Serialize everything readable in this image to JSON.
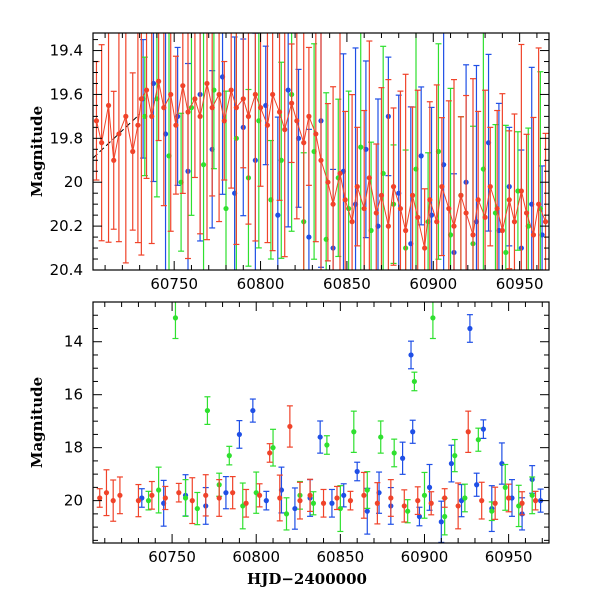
{
  "chart_data": [
    {
      "type": "scatter",
      "panel": "top",
      "title": "",
      "xlabel": "",
      "ylabel": "Magnitude",
      "xlim": [
        60703,
        60967
      ],
      "ylim": [
        20.4,
        19.32
      ],
      "y_inverted": true,
      "xticks": [
        60750,
        60800,
        60850,
        60900,
        60950
      ],
      "xtick_labels": [
        "60750",
        "60800",
        "60850",
        "60900",
        "60950"
      ],
      "yticks": [
        19.4,
        19.6,
        19.8,
        20,
        20.2,
        20.4
      ],
      "ytick_labels": [
        "19.4",
        "19.6",
        "19.8",
        "20",
        "20.2",
        "20.4"
      ],
      "dashed_line": {
        "x": [
          60703,
          60730
        ],
        "y": [
          19.89,
          19.69
        ]
      },
      "series": [
        {
          "name": "blue",
          "color": "#1f4fe6",
          "points": [
            [
              60732,
              19.62
            ],
            [
              60738,
              19.55
            ],
            [
              60745,
              19.78
            ],
            [
              60752,
              19.7
            ],
            [
              60758,
              19.95
            ],
            [
              60765,
              19.6
            ],
            [
              60772,
              19.85
            ],
            [
              60778,
              19.52
            ],
            [
              60785,
              20.05
            ],
            [
              60790,
              19.75
            ],
            [
              60797,
              19.9
            ],
            [
              60803,
              19.65
            ],
            [
              60810,
              20.15
            ],
            [
              60816,
              19.58
            ],
            [
              60822,
              19.8
            ],
            [
              60828,
              20.25
            ],
            [
              60835,
              19.72
            ],
            [
              60842,
              20.3
            ],
            [
              60848,
              19.95
            ],
            [
              60855,
              20.1
            ],
            [
              60861,
              19.85
            ],
            [
              60868,
              20.2
            ],
            [
              60874,
              19.7
            ],
            [
              60880,
              20.05
            ],
            [
              60887,
              20.28
            ],
            [
              60893,
              19.88
            ],
            [
              60899,
              20.15
            ],
            [
              60906,
              19.92
            ],
            [
              60912,
              20.32
            ],
            [
              60919,
              20.0
            ],
            [
              60925,
              20.18
            ],
            [
              60932,
              19.82
            ],
            [
              60938,
              20.22
            ],
            [
              60944,
              20.02
            ],
            [
              60951,
              20.3
            ],
            [
              60957,
              20.1
            ],
            [
              60963,
              20.24
            ]
          ]
        },
        {
          "name": "green",
          "color": "#2fe02f",
          "points": [
            [
              60733,
              19.7
            ],
            [
              60740,
              19.62
            ],
            [
              60747,
              19.88
            ],
            [
              60754,
              20.0
            ],
            [
              60760,
              19.66
            ],
            [
              60767,
              19.92
            ],
            [
              60773,
              19.58
            ],
            [
              60780,
              20.12
            ],
            [
              60786,
              19.8
            ],
            [
              60793,
              19.98
            ],
            [
              60799,
              19.72
            ],
            [
              60806,
              20.08
            ],
            [
              60812,
              19.9
            ],
            [
              60818,
              19.6
            ],
            [
              60825,
              20.18
            ],
            [
              60831,
              19.86
            ],
            [
              60838,
              20.26
            ],
            [
              60845,
              19.98
            ],
            [
              60851,
              20.12
            ],
            [
              60858,
              19.84
            ],
            [
              60864,
              20.22
            ],
            [
              60871,
              19.96
            ],
            [
              60877,
              20.1
            ],
            [
              60884,
              20.3
            ],
            [
              60890,
              19.94
            ],
            [
              60897,
              20.18
            ],
            [
              60903,
              19.86
            ],
            [
              60910,
              20.24
            ],
            [
              60916,
              20.06
            ],
            [
              60923,
              20.28
            ],
            [
              60929,
              19.94
            ],
            [
              60936,
              20.14
            ],
            [
              60942,
              20.32
            ],
            [
              60949,
              20.04
            ],
            [
              60955,
              20.2
            ],
            [
              60962,
              20.12
            ]
          ]
        },
        {
          "name": "red",
          "color": "#f0432a",
          "points": [
            [
              60705,
              19.72
            ],
            [
              60708,
              19.82
            ],
            [
              60712,
              19.65
            ],
            [
              60715,
              19.9
            ],
            [
              60718,
              19.78
            ],
            [
              60722,
              19.7
            ],
            [
              60726,
              19.86
            ],
            [
              60729,
              19.74
            ],
            [
              60731,
              19.62
            ],
            [
              60734,
              19.58
            ],
            [
              60737,
              19.7
            ],
            [
              60741,
              19.54
            ],
            [
              60744,
              19.66
            ],
            [
              60748,
              19.6
            ],
            [
              60751,
              19.74
            ],
            [
              60755,
              19.56
            ],
            [
              60758,
              19.68
            ],
            [
              60762,
              19.62
            ],
            [
              60765,
              19.7
            ],
            [
              60769,
              19.55
            ],
            [
              60772,
              19.66
            ],
            [
              60776,
              19.6
            ],
            [
              60779,
              19.72
            ],
            [
              60783,
              19.58
            ],
            [
              60786,
              19.66
            ],
            [
              60790,
              19.62
            ],
            [
              60793,
              19.7
            ],
            [
              60797,
              19.6
            ],
            [
              60800,
              19.66
            ],
            [
              60804,
              19.74
            ],
            [
              60807,
              19.6
            ],
            [
              60811,
              19.68
            ],
            [
              60814,
              19.76
            ],
            [
              60818,
              19.64
            ],
            [
              60821,
              19.72
            ],
            [
              60825,
              19.82
            ],
            [
              60828,
              19.7
            ],
            [
              60832,
              19.78
            ],
            [
              60835,
              19.9
            ],
            [
              60839,
              20.0
            ],
            [
              60842,
              20.1
            ],
            [
              60846,
              19.96
            ],
            [
              60849,
              20.08
            ],
            [
              60853,
              20.18
            ],
            [
              60856,
              20.02
            ],
            [
              60860,
              20.12
            ],
            [
              60863,
              19.98
            ],
            [
              60867,
              20.14
            ],
            [
              60870,
              20.06
            ],
            [
              60874,
              20.2
            ],
            [
              60877,
              20.02
            ],
            [
              60881,
              20.12
            ],
            [
              60884,
              20.22
            ],
            [
              60888,
              20.06
            ],
            [
              60891,
              20.16
            ],
            [
              60895,
              20.3
            ],
            [
              60898,
              20.08
            ],
            [
              60902,
              20.18
            ],
            [
              60905,
              20.02
            ],
            [
              60909,
              20.12
            ],
            [
              60912,
              20.2
            ],
            [
              60916,
              20.06
            ],
            [
              60919,
              20.14
            ],
            [
              60923,
              20.24
            ],
            [
              60926,
              20.08
            ],
            [
              60930,
              20.16
            ],
            [
              60933,
              20.02
            ],
            [
              60937,
              20.12
            ],
            [
              60940,
              20.22
            ],
            [
              60944,
              20.08
            ],
            [
              60947,
              20.18
            ],
            [
              60951,
              20.04
            ],
            [
              60954,
              20.14
            ],
            [
              60958,
              20.24
            ],
            [
              60961,
              20.1
            ],
            [
              60965,
              20.18
            ]
          ]
        }
      ]
    },
    {
      "type": "scatter",
      "panel": "bottom",
      "title": "",
      "xlabel": "HJD−2400000",
      "ylabel": "Magnitude",
      "xlim": [
        60703,
        60974
      ],
      "ylim": [
        21.6,
        12.5
      ],
      "y_inverted": true,
      "xticks": [
        60750,
        60800,
        60850,
        60900,
        60950
      ],
      "xtick_labels": [
        "60750",
        "60800",
        "60850",
        "60900",
        "60950"
      ],
      "yticks": [
        14,
        16,
        18,
        20
      ],
      "ytick_labels": [
        "14",
        "16",
        "18",
        "20"
      ],
      "series": [
        {
          "name": "blue",
          "color": "#1f4fe6",
          "points": [
            [
              60732,
              19.9
            ],
            [
              60745,
              20.1
            ],
            [
              60758,
              19.8
            ],
            [
              60770,
              20.2
            ],
            [
              60782,
              19.7
            ],
            [
              60790,
              17.5
            ],
            [
              60798,
              16.6
            ],
            [
              60806,
              20.0
            ],
            [
              60815,
              19.6
            ],
            [
              60823,
              20.3
            ],
            [
              60832,
              19.9
            ],
            [
              60838,
              17.6
            ],
            [
              60845,
              20.1
            ],
            [
              60852,
              19.8
            ],
            [
              60860,
              18.9
            ],
            [
              60866,
              20.4
            ],
            [
              60873,
              19.7
            ],
            [
              60880,
              20.2
            ],
            [
              60887,
              18.4
            ],
            [
              60892,
              14.5
            ],
            [
              60893,
              17.4
            ],
            [
              60897,
              20.6
            ],
            [
              60903,
              19.5
            ],
            [
              60910,
              20.8
            ],
            [
              60916,
              18.6
            ],
            [
              60922,
              20.0
            ],
            [
              60927,
              13.5
            ],
            [
              60931,
              19.4
            ],
            [
              60935,
              17.3
            ],
            [
              60940,
              20.3
            ],
            [
              60946,
              18.6
            ],
            [
              60952,
              19.9
            ],
            [
              60958,
              20.5
            ],
            [
              60964,
              19.2
            ],
            [
              60969,
              20.0
            ]
          ]
        },
        {
          "name": "green",
          "color": "#2fe02f",
          "points": [
            [
              60736,
              20.0
            ],
            [
              60742,
              19.6
            ],
            [
              60752,
              13.1
            ],
            [
              60758,
              19.9
            ],
            [
              60765,
              20.3
            ],
            [
              60771,
              16.6
            ],
            [
              60778,
              19.4
            ],
            [
              60784,
              18.3
            ],
            [
              60792,
              20.2
            ],
            [
              60800,
              19.7
            ],
            [
              60810,
              18.0
            ],
            [
              60818,
              20.5
            ],
            [
              60826,
              19.8
            ],
            [
              60834,
              20.1
            ],
            [
              60842,
              17.9
            ],
            [
              60850,
              20.3
            ],
            [
              60858,
              17.4
            ],
            [
              60866,
              19.6
            ],
            [
              60874,
              17.6
            ],
            [
              60882,
              18.2
            ],
            [
              60890,
              20.4
            ],
            [
              60894,
              15.5
            ],
            [
              60900,
              19.8
            ],
            [
              60905,
              13.1
            ],
            [
              60912,
              20.6
            ],
            [
              60918,
              18.3
            ],
            [
              60924,
              19.9
            ],
            [
              60932,
              17.7
            ],
            [
              60940,
              20.4
            ],
            [
              60948,
              19.5
            ],
            [
              60956,
              20.2
            ],
            [
              60964,
              19.8
            ]
          ]
        },
        {
          "name": "red",
          "color": "#f0432a",
          "points": [
            [
              60707,
              19.9
            ],
            [
              60711,
              19.7
            ],
            [
              60715,
              20.0
            ],
            [
              60719,
              19.8
            ],
            [
              60730,
              20.0
            ],
            [
              60738,
              19.8
            ],
            [
              60746,
              19.9
            ],
            [
              60754,
              19.7
            ],
            [
              60762,
              20.0
            ],
            [
              60770,
              19.8
            ],
            [
              60778,
              19.9
            ],
            [
              60786,
              19.7
            ],
            [
              60794,
              20.1
            ],
            [
              60802,
              19.8
            ],
            [
              60808,
              18.2
            ],
            [
              60814,
              19.9
            ],
            [
              60820,
              17.2
            ],
            [
              60826,
              20.0
            ],
            [
              60832,
              19.8
            ],
            [
              60840,
              20.1
            ],
            [
              60848,
              19.9
            ],
            [
              60856,
              20.0
            ],
            [
              60864,
              19.8
            ],
            [
              60872,
              20.1
            ],
            [
              60880,
              19.9
            ],
            [
              60888,
              20.2
            ],
            [
              60896,
              20.0
            ],
            [
              60904,
              20.1
            ],
            [
              60912,
              19.9
            ],
            [
              60920,
              20.2
            ],
            [
              60926,
              17.4
            ],
            [
              60934,
              20.0
            ],
            [
              60942,
              20.1
            ],
            [
              60950,
              19.9
            ],
            [
              60958,
              20.1
            ],
            [
              60966,
              20.0
            ]
          ]
        }
      ]
    }
  ]
}
